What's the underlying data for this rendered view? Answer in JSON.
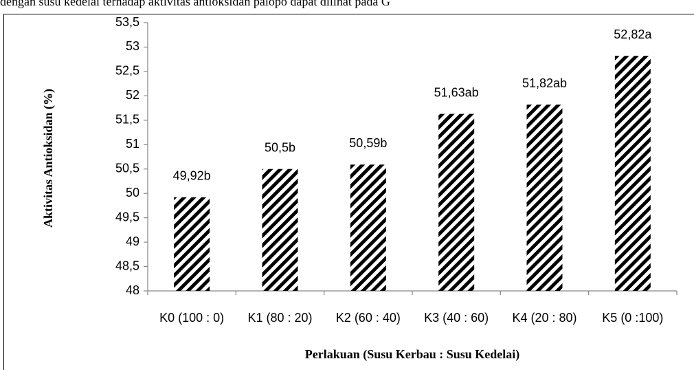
{
  "page_text": "dengan susu kedelai terhadap aktivitas antioksidan palopo dapat dilihat pada G",
  "chart_data": {
    "type": "bar",
    "ylabel": "Aktivitas Antioksidan (%)",
    "xlabel": "Perlakuan (Susu Kerbau : Susu Kedelai)",
    "categories": [
      "K0 (100 : 0)",
      "K1 (80 : 20)",
      "K2 (60 : 40)",
      "K3 (40 : 60)",
      "K4 (20 : 80)",
      "K5 (0 :100)"
    ],
    "values": [
      49.92,
      50.5,
      50.59,
      51.63,
      51.82,
      52.82
    ],
    "value_labels": [
      "49,92b",
      "50,5b",
      "50,59b",
      "51,63ab",
      "51,82ab",
      "52,82a"
    ],
    "color": "#000000",
    "ylim": [
      48,
      53.5
    ],
    "yticks": [
      48,
      {
        "value": 48.5,
        "label": "48,5"
      },
      49,
      {
        "value": 49.5,
        "label": "49,5"
      },
      50,
      {
        "value": 50.5,
        "label": "50,5"
      },
      51,
      {
        "value": 51.5,
        "label": "51,5"
      },
      52,
      {
        "value": 52.5,
        "label": "52,5"
      },
      53,
      {
        "value": 53.5,
        "label": "53,5"
      }
    ],
    "grid": false
  }
}
